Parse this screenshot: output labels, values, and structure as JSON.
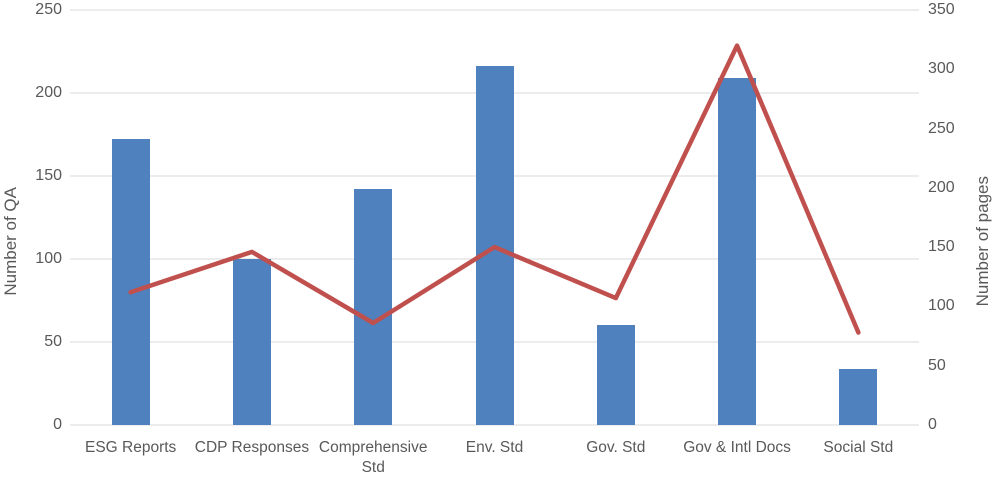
{
  "chart_data": {
    "type": "bar",
    "subtype": "combo-bar-line",
    "title": "",
    "categories": [
      "ESG Reports",
      "CDP Responses",
      "Comprehensive Std",
      "Env. Std",
      "Gov. Std",
      "Gov & Intl Docs",
      "Social Std"
    ],
    "series": [
      {
        "name": "Number of QA",
        "type": "bar",
        "axis": "left",
        "color": "#4E81BD",
        "values": [
          172,
          100,
          142,
          216,
          60,
          209,
          34
        ]
      },
      {
        "name": "Number of pages",
        "type": "line",
        "axis": "right",
        "color": "#C0504D",
        "values": [
          112,
          146,
          86,
          150,
          107,
          320,
          78
        ]
      }
    ],
    "left_axis": {
      "label": "Number of QA",
      "min": 0,
      "max": 250,
      "ticks": [
        0,
        50,
        100,
        150,
        200,
        250
      ]
    },
    "right_axis": {
      "label": "Number of pages",
      "min": 0,
      "max": 350,
      "ticks": [
        0,
        50,
        100,
        150,
        200,
        250,
        300,
        350
      ]
    },
    "grid": true,
    "legend": false,
    "colors": {
      "gridline": "#D9D9D9",
      "text": "#595959",
      "background": "#FFFFFF"
    }
  }
}
